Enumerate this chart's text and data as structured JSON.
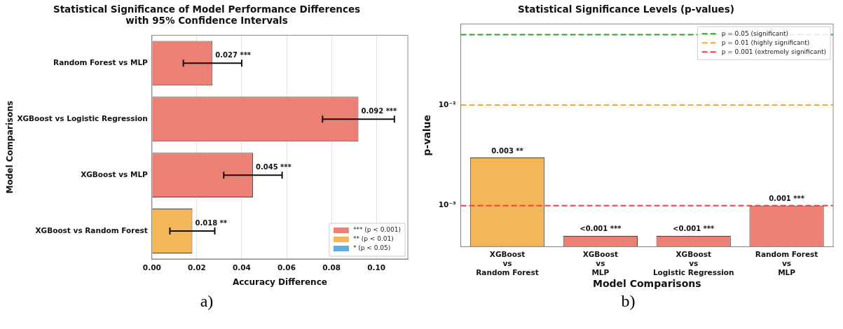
{
  "chart_data": [
    {
      "type": "bar",
      "orientation": "horizontal",
      "stacked": true,
      "title": "Statistical Significance of Model Performance Differences\nwith 95% Confidence Intervals",
      "xlabel": "Accuracy Difference",
      "ylabel": "Model Comparisons",
      "categories": [
        "Random Forest vs MLP",
        "XGBoost vs Logistic Regression",
        "XGBoost vs MLP",
        "XGBoost vs Random Forest"
      ],
      "series": [
        {
          "name": "*** (p < 0.001)",
          "color": "#ec8074",
          "values": [
            0.027,
            0.092,
            0.045,
            null
          ],
          "errors": [
            [
              0.014,
              0.04
            ],
            [
              0.076,
              0.108
            ],
            [
              0.032,
              0.058
            ],
            null
          ],
          "value_labels": [
            "0.027 ***",
            "0.092 ***",
            "0.045 ***",
            null
          ]
        },
        {
          "name": "** (p < 0.01)",
          "color": "#f3b75a",
          "values": [
            null,
            null,
            null,
            0.018
          ],
          "errors": [
            null,
            null,
            null,
            [
              0.008,
              0.028
            ]
          ],
          "value_labels": [
            null,
            null,
            null,
            "0.018 **"
          ]
        },
        {
          "name": "* (p < 0.05)",
          "color": "#5dade2",
          "values": [
            null,
            null,
            null,
            null
          ]
        }
      ],
      "xlim": [
        0,
        0.114
      ],
      "xticks": [
        {
          "value": 0,
          "label": "0.00"
        },
        {
          "value": 0.02,
          "label": "0.02"
        },
        {
          "value": 0.04,
          "label": "0.04"
        },
        {
          "value": 0.06,
          "label": "0.06"
        },
        {
          "value": 0.08,
          "label": "0.08"
        },
        {
          "value": 0.1,
          "label": "0.10"
        }
      ],
      "grid": "x",
      "legend": "bottom right",
      "annotations": [
        "a)"
      ]
    },
    {
      "type": "bar",
      "title": "Statistical Significance Levels (p-values)",
      "xlabel": "Model Comparisons",
      "ylabel": "p-value",
      "log": true,
      "categories": [
        "XGBoost\nvs\nRandom Forest",
        "XGBoost\nvs\nMLP",
        "XGBoost\nvs\nLogistic Regression",
        "Random Forest\nvs\nMLP"
      ],
      "values": [
        0.003,
        0.0005,
        0.0005,
        0.001
      ],
      "colors": [
        "#f3b75a",
        "#ec8074",
        "#ec8074",
        "#ec8074"
      ],
      "value_labels": [
        "0.003\n**",
        "<0.001\n***",
        "<0.001\n***",
        "0.001\n***"
      ],
      "ylim": [
        0.00039,
        0.064
      ],
      "yticks": [
        {
          "value": 0.001,
          "label": "10⁻³"
        },
        {
          "value": 0.01,
          "label": "10⁻²"
        }
      ],
      "ref_lines": [
        {
          "axis": "y",
          "value": 0.05,
          "label": "p = 0.05 (significant)",
          "color": "#2ca02c",
          "line_style": "dashed"
        },
        {
          "axis": "y",
          "value": 0.01,
          "label": "p = 0.01 (highly significant)",
          "color": "#ffa726",
          "line_style": "dashed"
        },
        {
          "axis": "y",
          "value": 0.001,
          "label": "p = 0.001 (extremely significant)",
          "color": "#ff3b3b",
          "line_style": "dashed"
        }
      ],
      "grid": false,
      "legend": "top right",
      "annotations": [
        "b)"
      ]
    }
  ]
}
